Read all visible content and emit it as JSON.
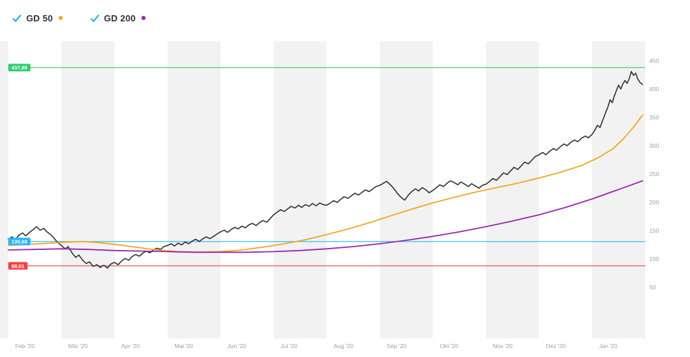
{
  "legend": {
    "check_color": "#2bb3e8",
    "items": [
      {
        "id": "gd50",
        "label": "GD 50",
        "checked": true,
        "color": "#f5a623"
      },
      {
        "id": "gd200",
        "label": "GD 200",
        "checked": true,
        "color": "#9c27b0"
      }
    ]
  },
  "chart_data": {
    "type": "line",
    "title": "",
    "band_color": "#f2f2f2",
    "axis_text_color": "#9aa0a6",
    "grid": "alternating-month-bands",
    "x_months": 12,
    "x_axis": {
      "labels": [
        "Feb '20",
        "Mär '20",
        "Apr '20",
        "Mai '20",
        "Jun '20",
        "Jul '20",
        "Aug '20",
        "Sep '20",
        "Okt '20",
        "Nov '20",
        "Dez '20",
        "Jan '21"
      ]
    },
    "y_axis": {
      "ticks": [
        450,
        400,
        350,
        300,
        250,
        200,
        150,
        100,
        50
      ],
      "side": "right"
    },
    "ylim": [
      -40,
      484
    ],
    "reference_lines": [
      {
        "id": "high",
        "label": "437,88",
        "value": 437.88,
        "color": "#2ecc71"
      },
      {
        "id": "mid",
        "label": "130,88",
        "value": 130.88,
        "color": "#29b6f6"
      },
      {
        "id": "low",
        "label": "88,01",
        "value": 88.01,
        "color": "#ef4444"
      }
    ],
    "series": [
      {
        "id": "price",
        "color": "#333333",
        "width": 1.6,
        "points": [
          [
            0,
            135
          ],
          [
            0.07,
            139
          ],
          [
            0.13,
            134
          ],
          [
            0.2,
            142
          ],
          [
            0.27,
            146
          ],
          [
            0.33,
            141
          ],
          [
            0.4,
            147
          ],
          [
            0.47,
            152
          ],
          [
            0.53,
            157
          ],
          [
            0.6,
            151
          ],
          [
            0.67,
            154
          ],
          [
            0.73,
            148
          ],
          [
            0.8,
            143
          ],
          [
            0.87,
            136
          ],
          [
            0.93,
            129
          ],
          [
            1,
            124
          ],
          [
            1.07,
            118
          ],
          [
            1.13,
            122
          ],
          [
            1.2,
            111
          ],
          [
            1.27,
            103
          ],
          [
            1.33,
            107
          ],
          [
            1.4,
            98
          ],
          [
            1.47,
            92
          ],
          [
            1.53,
            95
          ],
          [
            1.6,
            87
          ],
          [
            1.67,
            90
          ],
          [
            1.73,
            85
          ],
          [
            1.8,
            89
          ],
          [
            1.87,
            84
          ],
          [
            1.93,
            91
          ],
          [
            2,
            94
          ],
          [
            2.07,
            90
          ],
          [
            2.13,
            96
          ],
          [
            2.2,
            101
          ],
          [
            2.27,
            98
          ],
          [
            2.33,
            104
          ],
          [
            2.4,
            108
          ],
          [
            2.47,
            105
          ],
          [
            2.53,
            110
          ],
          [
            2.6,
            114
          ],
          [
            2.67,
            111
          ],
          [
            2.73,
            116
          ],
          [
            2.8,
            119
          ],
          [
            2.87,
            117
          ],
          [
            2.93,
            122
          ],
          [
            3,
            124
          ],
          [
            3.07,
            127
          ],
          [
            3.13,
            123
          ],
          [
            3.2,
            128
          ],
          [
            3.27,
            125
          ],
          [
            3.33,
            130
          ],
          [
            3.4,
            127
          ],
          [
            3.47,
            132
          ],
          [
            3.53,
            135
          ],
          [
            3.6,
            131
          ],
          [
            3.67,
            136
          ],
          [
            3.73,
            139
          ],
          [
            3.8,
            136
          ],
          [
            3.87,
            140
          ],
          [
            3.93,
            144
          ],
          [
            4,
            148
          ],
          [
            4.07,
            151
          ],
          [
            4.13,
            147
          ],
          [
            4.2,
            152
          ],
          [
            4.27,
            156
          ],
          [
            4.33,
            153
          ],
          [
            4.4,
            158
          ],
          [
            4.47,
            155
          ],
          [
            4.53,
            160
          ],
          [
            4.6,
            163
          ],
          [
            4.67,
            159
          ],
          [
            4.73,
            164
          ],
          [
            4.8,
            168
          ],
          [
            4.87,
            165
          ],
          [
            4.93,
            171
          ],
          [
            5,
            178
          ],
          [
            5.07,
            183
          ],
          [
            5.13,
            187
          ],
          [
            5.2,
            184
          ],
          [
            5.27,
            189
          ],
          [
            5.33,
            193
          ],
          [
            5.4,
            190
          ],
          [
            5.47,
            195
          ],
          [
            5.53,
            191
          ],
          [
            5.6,
            196
          ],
          [
            5.67,
            193
          ],
          [
            5.73,
            198
          ],
          [
            5.8,
            194
          ],
          [
            5.87,
            199
          ],
          [
            5.93,
            196
          ],
          [
            6,
            195
          ],
          [
            6.07,
            199
          ],
          [
            6.13,
            203
          ],
          [
            6.2,
            200
          ],
          [
            6.27,
            206
          ],
          [
            6.33,
            210
          ],
          [
            6.4,
            207
          ],
          [
            6.47,
            212
          ],
          [
            6.53,
            216
          ],
          [
            6.6,
            213
          ],
          [
            6.67,
            218
          ],
          [
            6.73,
            222
          ],
          [
            6.8,
            219
          ],
          [
            6.87,
            224
          ],
          [
            6.93,
            228
          ],
          [
            7,
            230
          ],
          [
            7.07,
            234
          ],
          [
            7.13,
            237
          ],
          [
            7.2,
            231
          ],
          [
            7.27,
            224
          ],
          [
            7.33,
            216
          ],
          [
            7.4,
            209
          ],
          [
            7.47,
            204
          ],
          [
            7.53,
            212
          ],
          [
            7.6,
            219
          ],
          [
            7.67,
            224
          ],
          [
            7.73,
            220
          ],
          [
            7.8,
            226
          ],
          [
            7.87,
            222
          ],
          [
            7.93,
            217
          ],
          [
            8,
            221
          ],
          [
            8.07,
            226
          ],
          [
            8.13,
            231
          ],
          [
            8.2,
            228
          ],
          [
            8.27,
            234
          ],
          [
            8.33,
            238
          ],
          [
            8.4,
            235
          ],
          [
            8.47,
            231
          ],
          [
            8.53,
            236
          ],
          [
            8.6,
            232
          ],
          [
            8.67,
            228
          ],
          [
            8.73,
            233
          ],
          [
            8.8,
            229
          ],
          [
            8.87,
            225
          ],
          [
            8.93,
            230
          ],
          [
            9,
            232
          ],
          [
            9.07,
            237
          ],
          [
            9.13,
            242
          ],
          [
            9.2,
            239
          ],
          [
            9.27,
            246
          ],
          [
            9.33,
            252
          ],
          [
            9.4,
            249
          ],
          [
            9.47,
            256
          ],
          [
            9.53,
            262
          ],
          [
            9.6,
            258
          ],
          [
            9.67,
            265
          ],
          [
            9.73,
            271
          ],
          [
            9.8,
            268
          ],
          [
            9.87,
            275
          ],
          [
            9.93,
            281
          ],
          [
            10,
            284
          ],
          [
            10.07,
            288
          ],
          [
            10.13,
            284
          ],
          [
            10.2,
            290
          ],
          [
            10.27,
            295
          ],
          [
            10.33,
            292
          ],
          [
            10.4,
            298
          ],
          [
            10.47,
            303
          ],
          [
            10.53,
            300
          ],
          [
            10.6,
            306
          ],
          [
            10.67,
            310
          ],
          [
            10.73,
            307
          ],
          [
            10.8,
            313
          ],
          [
            10.87,
            317
          ],
          [
            10.93,
            314
          ],
          [
            11,
            320
          ],
          [
            11.05,
            327
          ],
          [
            11.1,
            336
          ],
          [
            11.15,
            332
          ],
          [
            11.2,
            345
          ],
          [
            11.25,
            357
          ],
          [
            11.3,
            369
          ],
          [
            11.34,
            381
          ],
          [
            11.38,
            376
          ],
          [
            11.42,
            388
          ],
          [
            11.46,
            398
          ],
          [
            11.5,
            407
          ],
          [
            11.54,
            400
          ],
          [
            11.58,
            409
          ],
          [
            11.62,
            415
          ],
          [
            11.66,
            410
          ],
          [
            11.7,
            418
          ],
          [
            11.74,
            431
          ],
          [
            11.78,
            424
          ],
          [
            11.82,
            428
          ],
          [
            11.86,
            418
          ],
          [
            11.9,
            412
          ],
          [
            11.95,
            408
          ]
        ]
      },
      {
        "id": "gd50",
        "name": "GD 50",
        "color": "#f5a623",
        "width": 1.8,
        "points": [
          [
            0,
            124
          ],
          [
            0.4,
            126
          ],
          [
            0.8,
            128
          ],
          [
            1.1,
            130
          ],
          [
            1.4,
            131
          ],
          [
            1.7,
            129
          ],
          [
            2,
            126
          ],
          [
            2.4,
            121
          ],
          [
            2.8,
            116
          ],
          [
            3.2,
            113
          ],
          [
            3.6,
            112
          ],
          [
            4,
            113
          ],
          [
            4.4,
            116
          ],
          [
            4.8,
            121
          ],
          [
            5.2,
            127
          ],
          [
            5.6,
            134
          ],
          [
            6,
            143
          ],
          [
            6.4,
            153
          ],
          [
            6.8,
            164
          ],
          [
            7.2,
            176
          ],
          [
            7.6,
            188
          ],
          [
            8,
            199
          ],
          [
            8.4,
            209
          ],
          [
            8.8,
            218
          ],
          [
            9.2,
            226
          ],
          [
            9.6,
            234
          ],
          [
            10,
            243
          ],
          [
            10.4,
            253
          ],
          [
            10.8,
            265
          ],
          [
            11.1,
            278
          ],
          [
            11.4,
            295
          ],
          [
            11.6,
            313
          ],
          [
            11.8,
            335
          ],
          [
            11.95,
            354
          ]
        ]
      },
      {
        "id": "gd200",
        "name": "GD 200",
        "color": "#9c27b0",
        "width": 1.8,
        "points": [
          [
            0,
            116
          ],
          [
            0.5,
            117
          ],
          [
            1,
            118
          ],
          [
            1.5,
            117
          ],
          [
            2,
            115
          ],
          [
            2.5,
            114
          ],
          [
            3,
            113
          ],
          [
            3.5,
            112
          ],
          [
            4,
            112
          ],
          [
            4.5,
            112
          ],
          [
            5,
            113
          ],
          [
            5.5,
            115
          ],
          [
            6,
            118
          ],
          [
            6.5,
            122
          ],
          [
            7,
            127
          ],
          [
            7.5,
            133
          ],
          [
            8,
            140
          ],
          [
            8.5,
            148
          ],
          [
            9,
            157
          ],
          [
            9.5,
            167
          ],
          [
            10,
            178
          ],
          [
            10.5,
            191
          ],
          [
            11,
            206
          ],
          [
            11.3,
            216
          ],
          [
            11.6,
            226
          ],
          [
            11.95,
            238
          ]
        ]
      }
    ]
  }
}
